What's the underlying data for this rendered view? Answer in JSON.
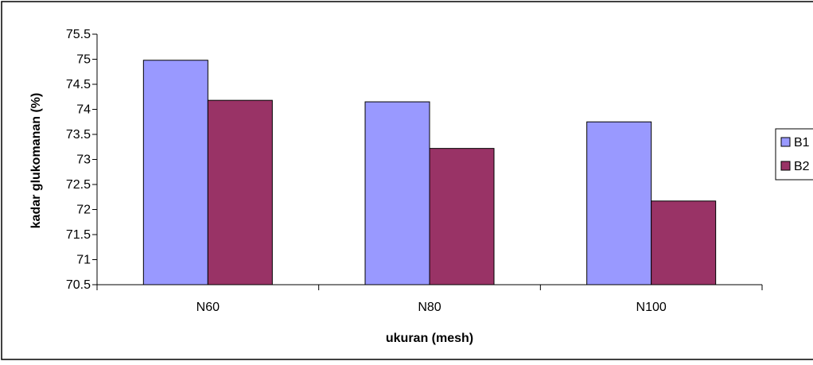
{
  "chart_data": {
    "type": "bar",
    "title": "",
    "xlabel": "ukuran (mesh)",
    "ylabel": "kadar glukomanan (%)",
    "categories": [
      "N60",
      "N80",
      "N100"
    ],
    "series": [
      {
        "name": "B1",
        "values": [
          74.98,
          74.15,
          73.75
        ],
        "color": "#9999ff"
      },
      {
        "name": "B2",
        "values": [
          74.18,
          73.22,
          72.17
        ],
        "color": "#993366"
      }
    ],
    "ylim": [
      70.5,
      75.5
    ],
    "yticks": [
      "70.5",
      "71",
      "71.5",
      "72",
      "72.5",
      "73",
      "73.5",
      "74",
      "74.5",
      "75",
      "75.5"
    ],
    "grid": false,
    "legend": "right"
  }
}
